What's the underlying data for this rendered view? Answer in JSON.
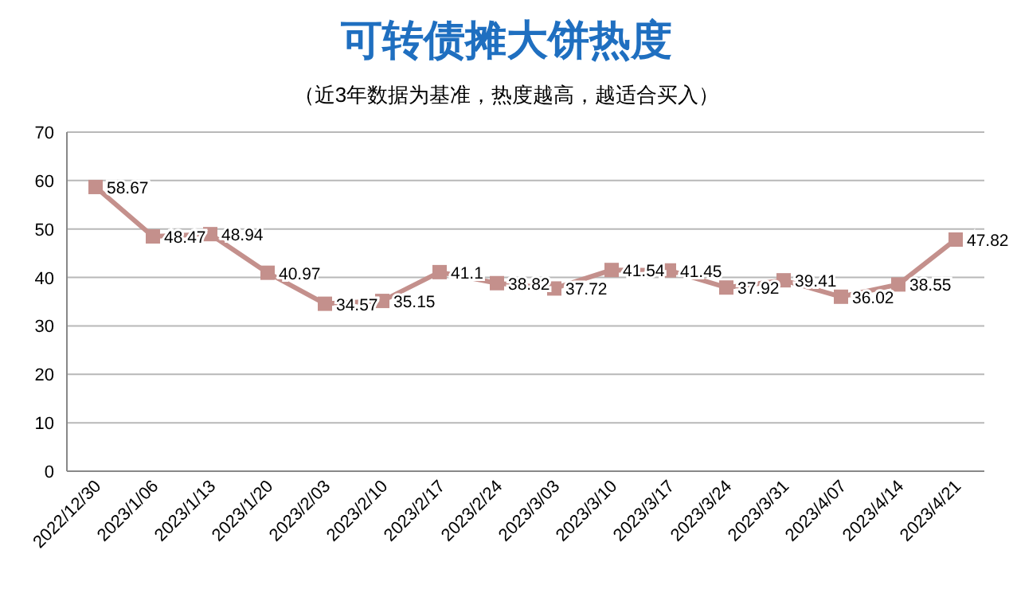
{
  "chart_data": {
    "type": "line",
    "title": "可转债摊大饼热度",
    "subtitle": "（近3年数据为基准，热度越高，越适合买入）",
    "categories": [
      "2022/12/30",
      "2023/1/06",
      "2023/1/13",
      "2023/1/20",
      "2023/2/03",
      "2023/2/10",
      "2023/2/17",
      "2023/2/24",
      "2023/3/03",
      "2023/3/10",
      "2023/3/17",
      "2023/3/24",
      "2023/3/31",
      "2023/4/07",
      "2023/4/14",
      "2023/4/21"
    ],
    "values": [
      58.67,
      48.47,
      48.94,
      40.97,
      34.57,
      35.15,
      41.1,
      38.82,
      37.72,
      41.54,
      41.45,
      37.92,
      39.41,
      36.02,
      38.55,
      47.82
    ],
    "color": "#c4908c",
    "ylim": [
      0,
      70
    ],
    "yticks": [
      0,
      10,
      20,
      30,
      40,
      50,
      60,
      70
    ],
    "grid": "y",
    "marker": "square",
    "line_style": "solid",
    "data_labels": true
  }
}
